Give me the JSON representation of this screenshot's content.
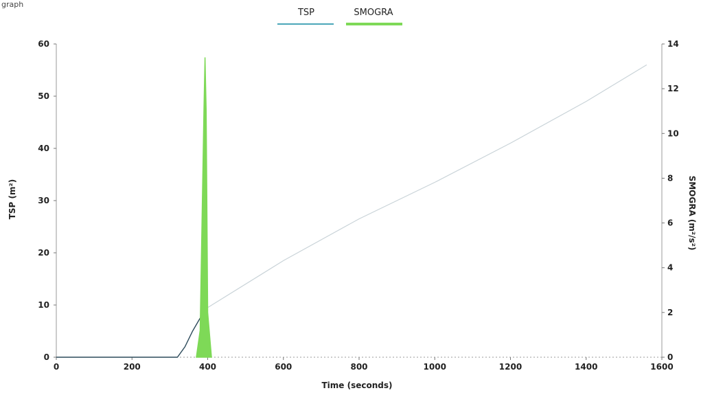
{
  "header": {
    "corner_fragment": "graph"
  },
  "chart_data": {
    "type": "line",
    "xlabel": "Time (seconds)",
    "ylabel_left": "TSP (m²)",
    "ylabel_right": "SMOGRA (m²/s²)",
    "xlim": [
      0,
      1600
    ],
    "ylim_left": [
      0,
      60
    ],
    "ylim_right": [
      0,
      14
    ],
    "x_ticks": [
      "0",
      "200",
      "400",
      "600",
      "800",
      "1000",
      "1200",
      "1400",
      "1600"
    ],
    "y_left_ticks": [
      "0",
      "10",
      "20",
      "30",
      "40",
      "50",
      "60"
    ],
    "y_right_ticks": [
      "0",
      "2",
      "4",
      "6",
      "8",
      "10",
      "12",
      "14"
    ],
    "grid": false,
    "legend_position": "top-center",
    "series": [
      {
        "name": "TSP",
        "axis": "left",
        "color": "#2c4a5a",
        "legend_color": "#4aa6b8",
        "x": [
          0,
          320,
          340,
          360,
          380,
          400,
          600,
          800,
          1000,
          1200,
          1400,
          1560
        ],
        "y": [
          0,
          0,
          2,
          5,
          7.5,
          9.5,
          18.5,
          26.5,
          33.5,
          41,
          49,
          56
        ]
      },
      {
        "name": "SMOGRA",
        "axis": "right",
        "color": "#7ed957",
        "x": [
          370,
          380,
          385,
          390,
          393,
          396,
          400,
          410
        ],
        "y": [
          0,
          1.2,
          6,
          11,
          13.4,
          11,
          2,
          0
        ]
      }
    ]
  }
}
